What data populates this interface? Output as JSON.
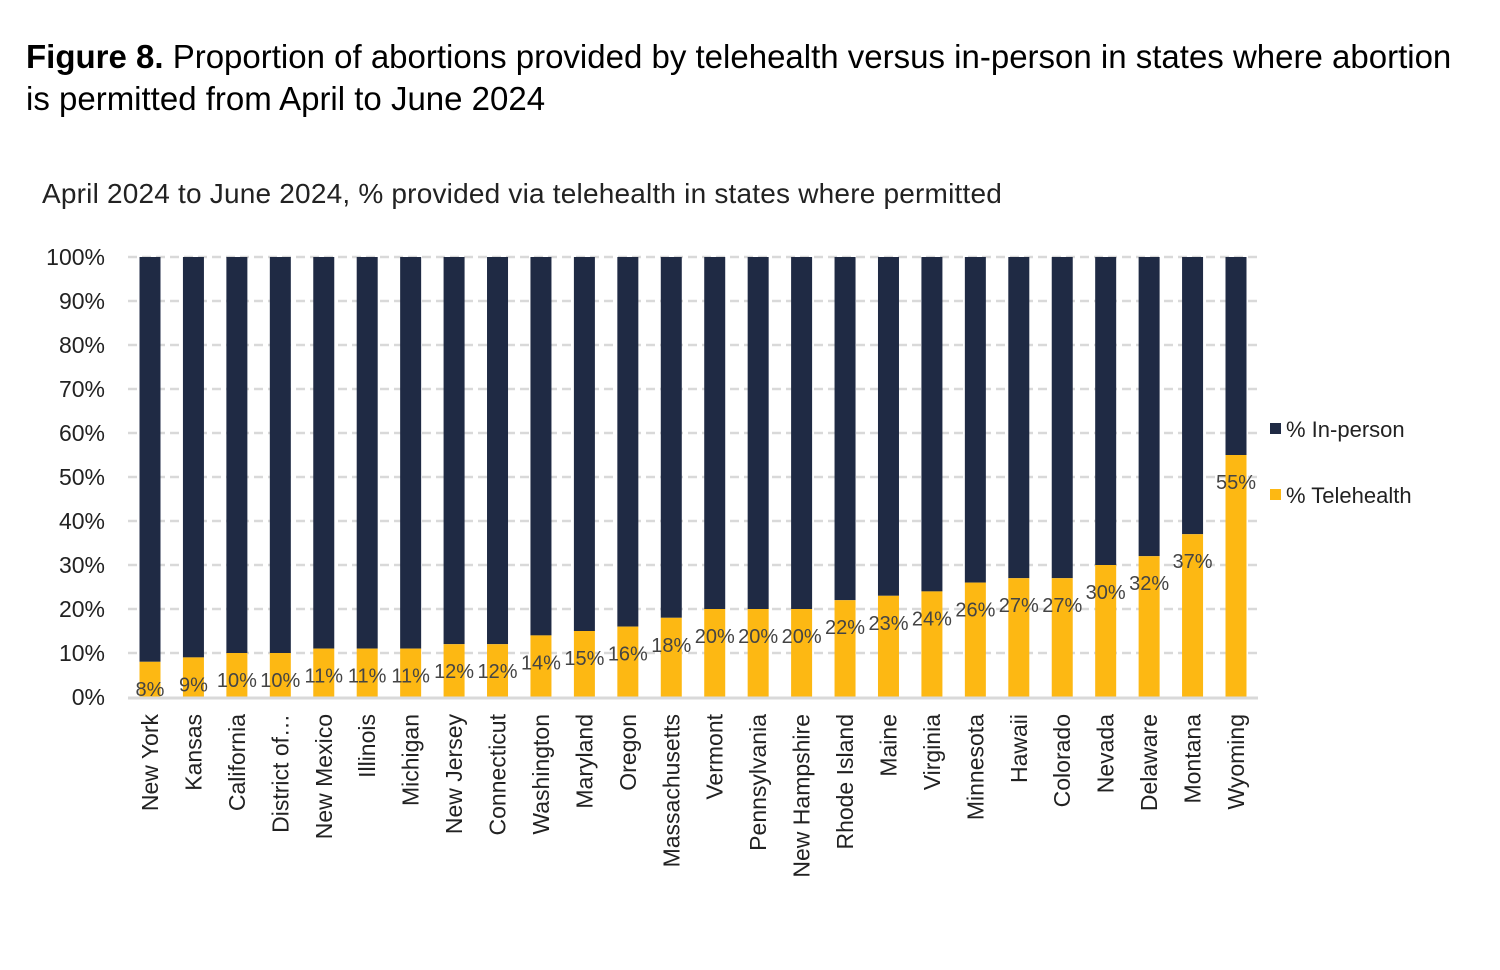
{
  "figure": {
    "label": "Figure 8.",
    "title": "Proportion of abortions provided by telehealth versus in-person in states where abortion is permitted from April to June 2024"
  },
  "chart_data": {
    "type": "bar",
    "stacked": true,
    "title": "April 2024 to June 2024, % provided via telehealth  in states where permitted",
    "xlabel": "",
    "ylabel": "",
    "ylim": [
      0,
      100
    ],
    "yticks": [
      "0%",
      "10%",
      "20%",
      "30%",
      "40%",
      "50%",
      "60%",
      "70%",
      "80%",
      "90%",
      "100%"
    ],
    "grid": true,
    "legend_position": "right",
    "categories": [
      "New York",
      "Kansas",
      "California",
      "District of…",
      "New Mexico",
      "Illinois",
      "Michigan",
      "New Jersey",
      "Connecticut",
      "Washington",
      "Maryland",
      "Oregon",
      "Massachusetts",
      "Vermont",
      "Pennsylvania",
      "New Hampshire",
      "Rhode Island",
      "Maine",
      "Virginia",
      "Minnesota",
      "Hawaii",
      "Colorado",
      "Nevada",
      "Delaware",
      "Montana",
      "Wyoming"
    ],
    "series": [
      {
        "name": "% Telehealth",
        "color": "#FDB813",
        "values": [
          8,
          9,
          10,
          10,
          11,
          11,
          11,
          12,
          12,
          14,
          15,
          16,
          18,
          20,
          20,
          20,
          22,
          23,
          24,
          26,
          27,
          27,
          30,
          32,
          37,
          55
        ]
      },
      {
        "name": "% In-person",
        "color": "#1F2A44",
        "values": [
          92,
          91,
          90,
          90,
          89,
          89,
          89,
          88,
          88,
          86,
          85,
          84,
          82,
          80,
          80,
          80,
          78,
          77,
          76,
          74,
          73,
          73,
          70,
          68,
          63,
          45
        ]
      }
    ],
    "data_labels": [
      "8%",
      "9%",
      "10%",
      "10%",
      "11%",
      "11%",
      "11%",
      "12%",
      "12%",
      "14%",
      "15%",
      "16%",
      "18%",
      "20%",
      "20%",
      "20%",
      "22%",
      "23%",
      "24%",
      "26%",
      "27%",
      "27%",
      "30%",
      "32%",
      "37%",
      "55%"
    ]
  }
}
